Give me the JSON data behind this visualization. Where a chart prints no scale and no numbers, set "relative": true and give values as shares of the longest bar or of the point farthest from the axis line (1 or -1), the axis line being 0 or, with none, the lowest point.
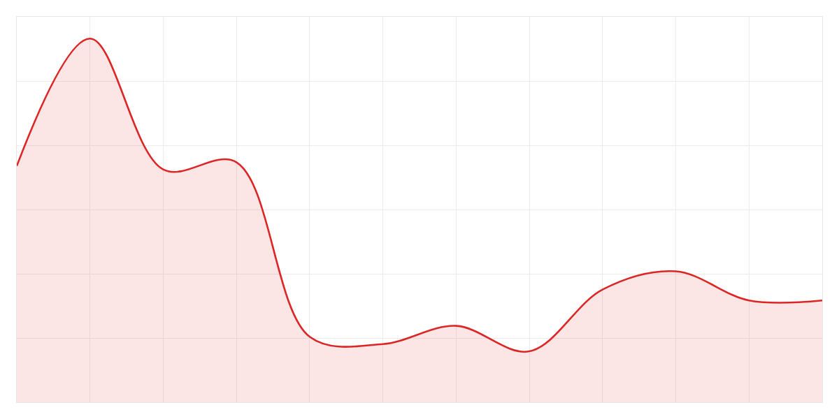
{
  "chart_data": {
    "type": "area",
    "relative": true,
    "grid": true,
    "categories": [
      null,
      null,
      null,
      null,
      null,
      null,
      null,
      null,
      null,
      null,
      null,
      null
    ],
    "series": [
      {
        "color": "#dc2626",
        "values": [
          0.65,
          1,
          0.64,
          0.66,
          0.18,
          0.16,
          0.21,
          0.14,
          0.31,
          0.36,
          0.28,
          0.28
        ]
      }
    ]
  }
}
